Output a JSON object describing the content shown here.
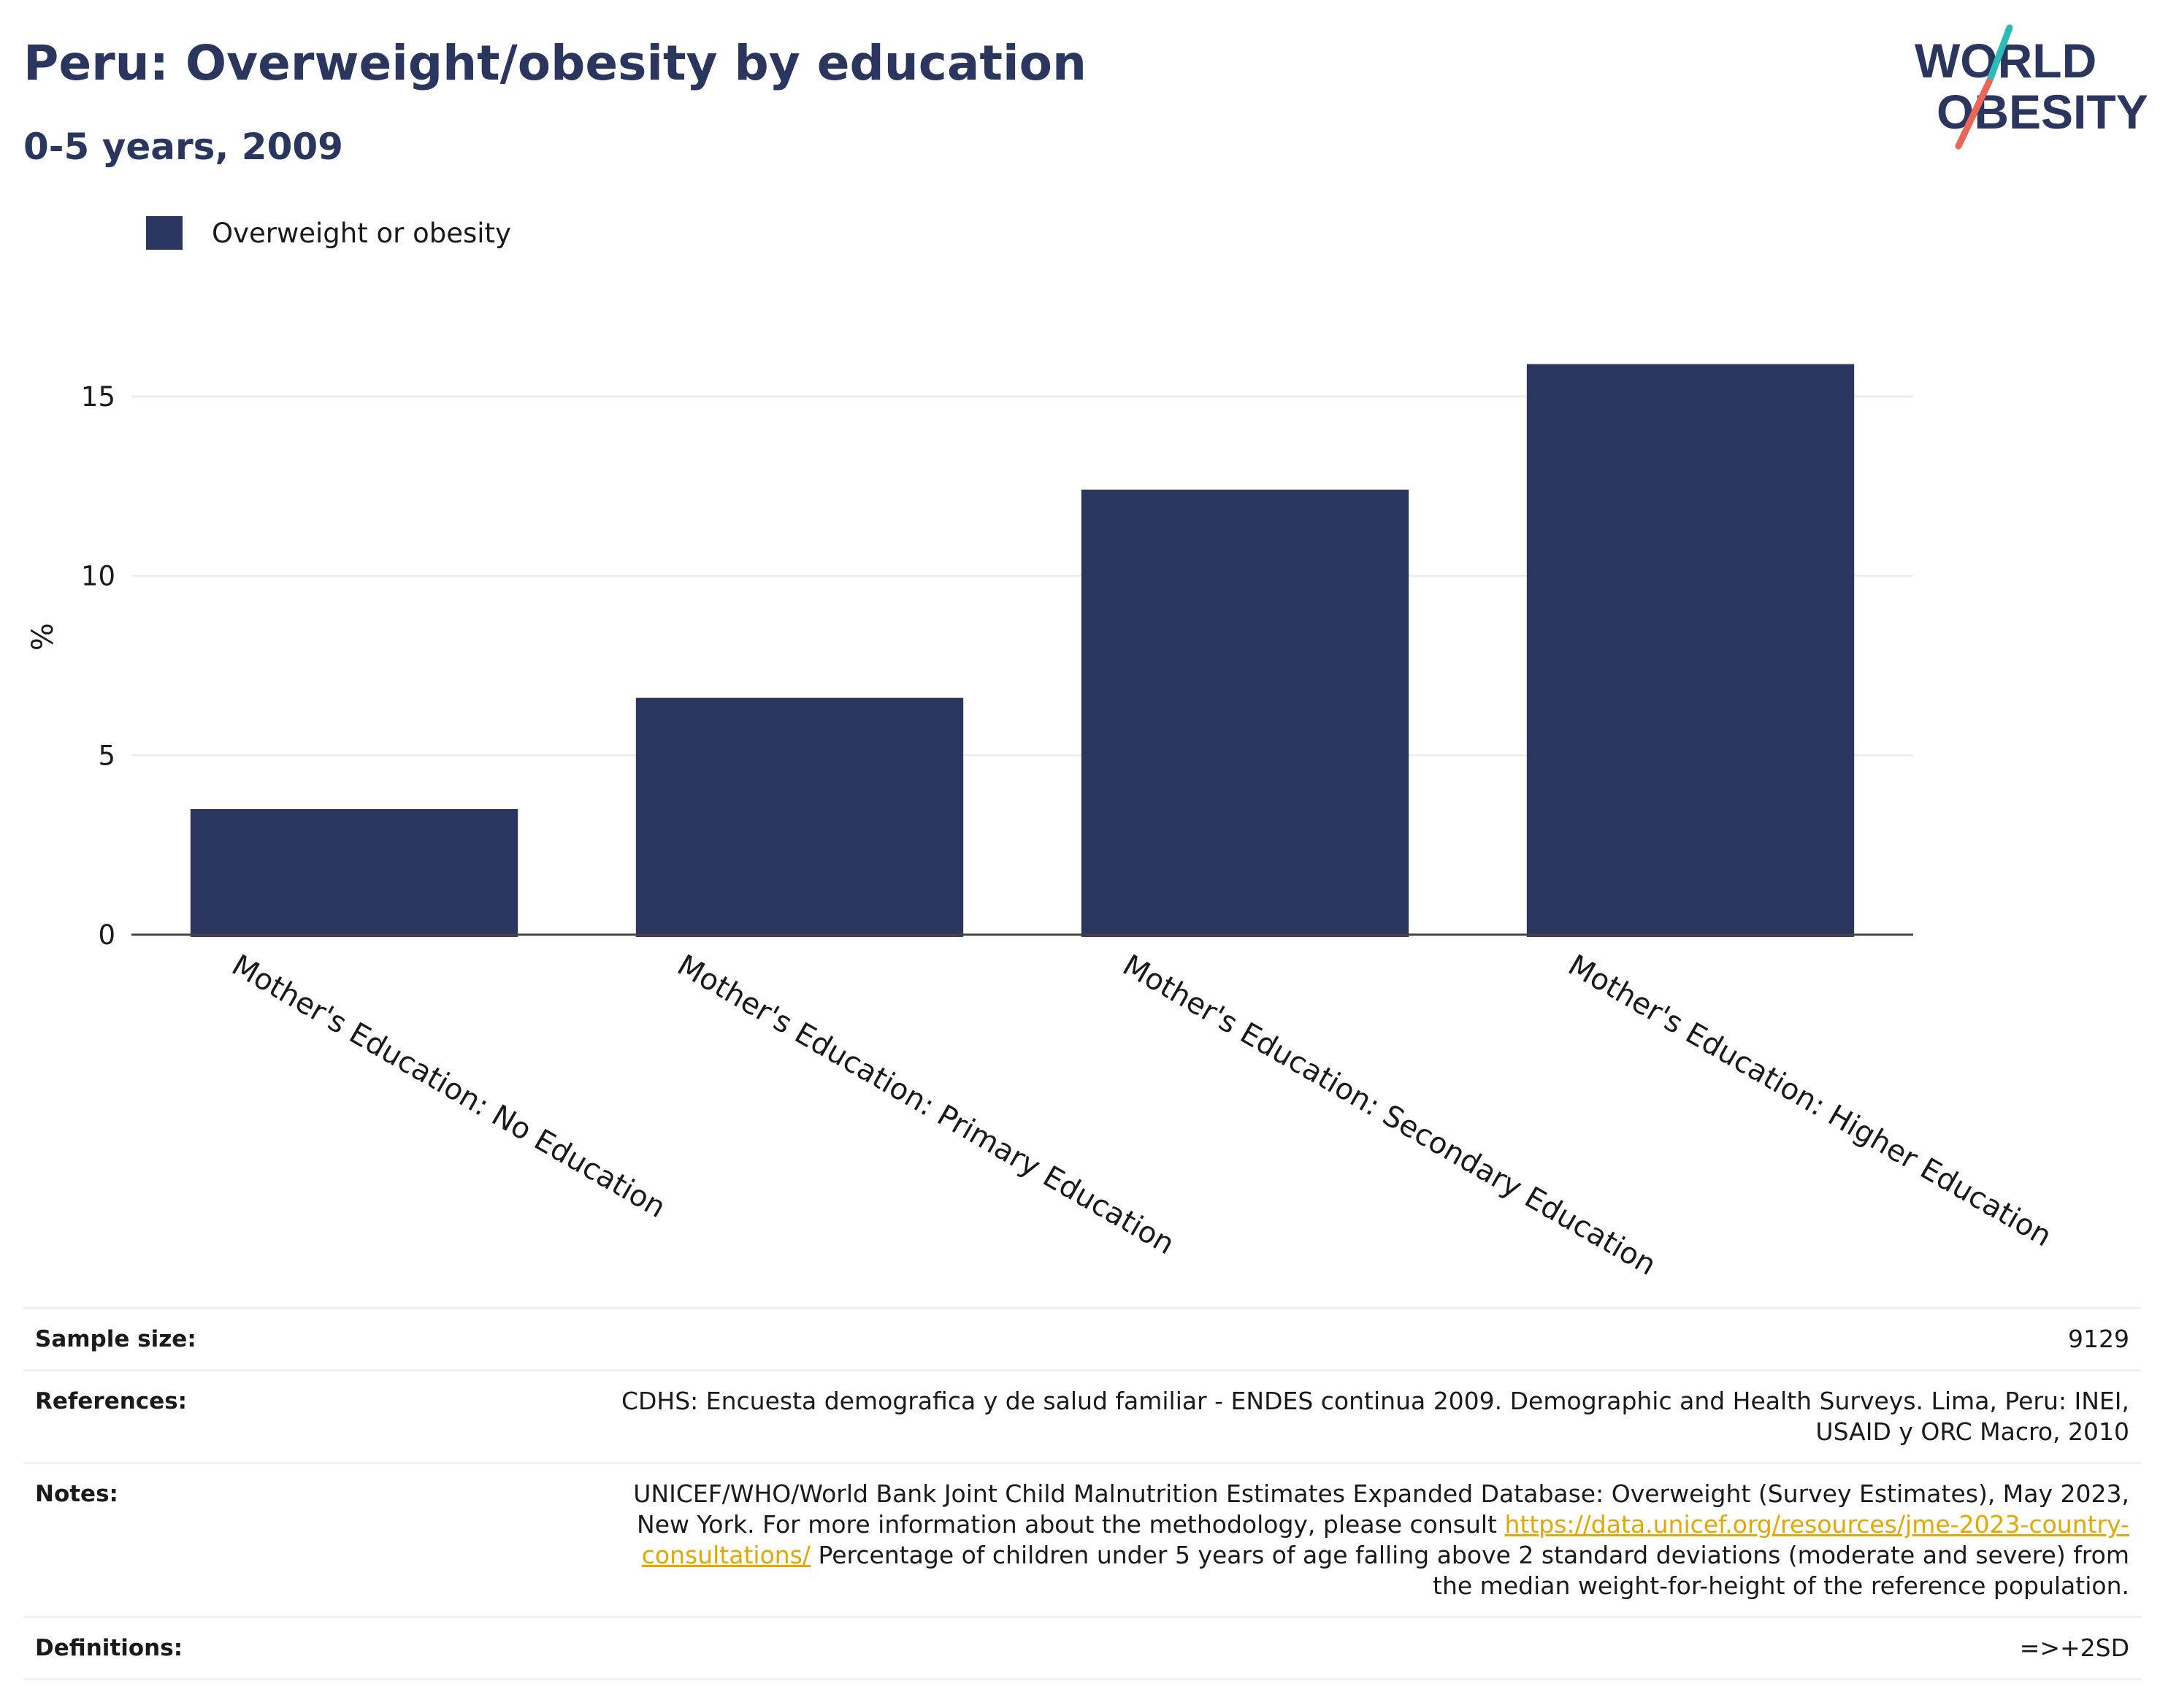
{
  "header": {
    "title": "Peru: Overweight/obesity by education",
    "subtitle": "0-5 years, 2009"
  },
  "logo": {
    "line1": "WORLD",
    "line2": "OBESITY"
  },
  "colors": {
    "bar": "#2b365f",
    "title": "#2b365f",
    "grid": "#eceef3",
    "axis": "#444444",
    "link": "#e0a800",
    "logo_teal": "#2bbcb8",
    "logo_coral": "#e8675a"
  },
  "chart_data": {
    "type": "bar",
    "categories": [
      "Mother's Education: No Education",
      "Mother's Education: Primary Education",
      "Mother's Education: Secondary Education",
      "Mother's Education: Higher Education"
    ],
    "series": [
      {
        "name": "Overweight or obesity",
        "values": [
          3.5,
          6.6,
          12.4,
          15.9
        ]
      }
    ],
    "ylabel": "%",
    "xlabel": "",
    "yticks": [
      0,
      5,
      10,
      15
    ],
    "ylim": [
      0,
      17.5
    ],
    "grid": true,
    "legend": "top-left"
  },
  "info": {
    "sample_size_label": "Sample size:",
    "sample_size_value": "9129",
    "references_label": "References:",
    "references_value": "CDHS: Encuesta demografica y de salud familiar - ENDES continua 2009. Demographic and Health Surveys. Lima, Peru: INEI, USAID y ORC Macro, 2010",
    "notes_label": "Notes:",
    "notes_text_1": "UNICEF/WHO/World Bank Joint Child Malnutrition Estimates Expanded Database: Overweight (Survey Estimates), May 2023, New York. For more information about the methodology, please consult",
    "notes_link": "https://data.unicef.org/resources/jme-2023-country-consultations/",
    "notes_text_2": "Percentage of children under 5 years of age falling above 2 standard deviations (moderate and severe) from the median weight-for-height of the reference population.",
    "definitions_label": "Definitions:",
    "definitions_value": "=>+2SD"
  }
}
